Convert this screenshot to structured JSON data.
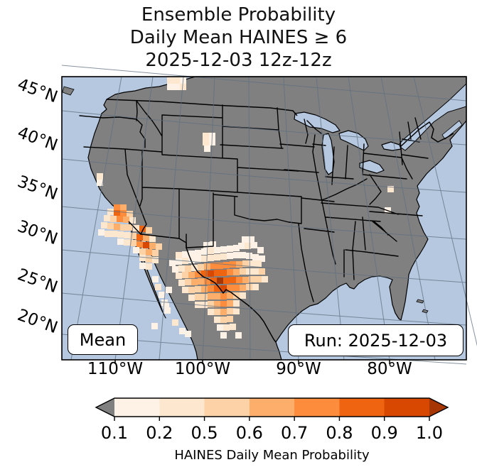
{
  "title": {
    "line1": "Ensemble Probability",
    "line2": "Daily Mean HAINES ≥ 6",
    "line3": "2025-12-03 12z-12z"
  },
  "map": {
    "mean_label": "Mean",
    "run_label": "Run: 2025-12-03",
    "lon_labels": [
      "110°W",
      "100°W",
      "90°W",
      "80°W"
    ],
    "lat_labels": [
      "45°N",
      "40°N",
      "35°N",
      "30°N",
      "25°N",
      "20°N"
    ],
    "colors": {
      "ocean": "#b5c8e0",
      "land": "#808080",
      "lake": "#b5c8e0",
      "boundary": "#000000",
      "gridline": "#5f6f7f"
    },
    "cell_size": 9,
    "palette": [
      "#fdf2e5",
      "#fee7cf",
      "#fdd2a6",
      "#fdae6b",
      "#fd8d3c",
      "#ee6410",
      "#d94801",
      "#a63603"
    ],
    "cells": [
      [
        235,
        109,
        2
      ],
      [
        244,
        109,
        2
      ],
      [
        253,
        109,
        1
      ],
      [
        235,
        118,
        1
      ],
      [
        244,
        118,
        1
      ],
      [
        253,
        118,
        2
      ],
      [
        285,
        187,
        2
      ],
      [
        294,
        187,
        1
      ],
      [
        285,
        196,
        2
      ],
      [
        294,
        196,
        1
      ],
      [
        287,
        205,
        1
      ],
      [
        136,
        244,
        2
      ],
      [
        136,
        253,
        1
      ],
      [
        545,
        262,
        2
      ],
      [
        541,
        292,
        1
      ],
      [
        160,
        288,
        5
      ],
      [
        169,
        288,
        4
      ],
      [
        151,
        294,
        2
      ],
      [
        160,
        296,
        6
      ],
      [
        169,
        296,
        5
      ],
      [
        178,
        297,
        3
      ],
      [
        146,
        303,
        2
      ],
      [
        155,
        304,
        3
      ],
      [
        164,
        304,
        5
      ],
      [
        173,
        305,
        4
      ],
      [
        182,
        306,
        2
      ],
      [
        142,
        313,
        2
      ],
      [
        151,
        314,
        3
      ],
      [
        160,
        315,
        4
      ],
      [
        169,
        316,
        3
      ],
      [
        178,
        316,
        3
      ],
      [
        187,
        317,
        2
      ],
      [
        196,
        318,
        6
      ],
      [
        205,
        320,
        3
      ],
      [
        138,
        323,
        1
      ],
      [
        147,
        325,
        2
      ],
      [
        156,
        325,
        2
      ],
      [
        165,
        326,
        2
      ],
      [
        174,
        327,
        2
      ],
      [
        183,
        328,
        3
      ],
      [
        192,
        330,
        6
      ],
      [
        201,
        331,
        4
      ],
      [
        210,
        332,
        2
      ],
      [
        165,
        336,
        1
      ],
      [
        174,
        337,
        2
      ],
      [
        183,
        338,
        3
      ],
      [
        192,
        340,
        5
      ],
      [
        201,
        341,
        7
      ],
      [
        210,
        342,
        4
      ],
      [
        219,
        343,
        3
      ],
      [
        187,
        348,
        1
      ],
      [
        196,
        350,
        3
      ],
      [
        205,
        351,
        4
      ],
      [
        214,
        352,
        3
      ],
      [
        196,
        359,
        2
      ],
      [
        205,
        361,
        3
      ],
      [
        214,
        362,
        2
      ],
      [
        196,
        370,
        1
      ],
      [
        205,
        371,
        2
      ],
      [
        214,
        389,
        1
      ],
      [
        218,
        400,
        2
      ],
      [
        223,
        411,
        1
      ],
      [
        227,
        422,
        1
      ],
      [
        231,
        433,
        1
      ],
      [
        213,
        455,
        1
      ],
      [
        252,
        462,
        1
      ],
      [
        340,
        333,
        1
      ],
      [
        349,
        333,
        1
      ],
      [
        286,
        341,
        1
      ],
      [
        295,
        340,
        1
      ],
      [
        335,
        342,
        1
      ],
      [
        344,
        342,
        2
      ],
      [
        247,
        355,
        2
      ],
      [
        256,
        354,
        1
      ],
      [
        265,
        353,
        1
      ],
      [
        274,
        352,
        1
      ],
      [
        283,
        350,
        1
      ],
      [
        292,
        349,
        2
      ],
      [
        301,
        348,
        1
      ],
      [
        310,
        347,
        1
      ],
      [
        319,
        346,
        1
      ],
      [
        328,
        345,
        1
      ],
      [
        353,
        341,
        1
      ],
      [
        362,
        348,
        1
      ],
      [
        238,
        366,
        1
      ],
      [
        247,
        364,
        1
      ],
      [
        256,
        363,
        2
      ],
      [
        265,
        362,
        1
      ],
      [
        274,
        361,
        1
      ],
      [
        283,
        360,
        2
      ],
      [
        292,
        359,
        2
      ],
      [
        301,
        358,
        2
      ],
      [
        310,
        357,
        2
      ],
      [
        319,
        356,
        1
      ],
      [
        328,
        355,
        1
      ],
      [
        337,
        355,
        1
      ],
      [
        346,
        356,
        1
      ],
      [
        355,
        358,
        1
      ],
      [
        364,
        360,
        1
      ],
      [
        242,
        375,
        1
      ],
      [
        251,
        374,
        2
      ],
      [
        260,
        374,
        3
      ],
      [
        269,
        373,
        2
      ],
      [
        278,
        372,
        3
      ],
      [
        287,
        371,
        4
      ],
      [
        296,
        370,
        5
      ],
      [
        305,
        370,
        5
      ],
      [
        314,
        369,
        5
      ],
      [
        323,
        368,
        5
      ],
      [
        332,
        368,
        4
      ],
      [
        341,
        367,
        3
      ],
      [
        350,
        367,
        2
      ],
      [
        359,
        367,
        2
      ],
      [
        247,
        384,
        2
      ],
      [
        256,
        383,
        3
      ],
      [
        265,
        383,
        4
      ],
      [
        274,
        382,
        5
      ],
      [
        283,
        381,
        6
      ],
      [
        292,
        381,
        7
      ],
      [
        301,
        380,
        6
      ],
      [
        310,
        380,
        6
      ],
      [
        319,
        379,
        5
      ],
      [
        328,
        379,
        4
      ],
      [
        337,
        378,
        3
      ],
      [
        346,
        378,
        2
      ],
      [
        355,
        378,
        2
      ],
      [
        364,
        378,
        3
      ],
      [
        251,
        394,
        2
      ],
      [
        260,
        393,
        3
      ],
      [
        269,
        393,
        4
      ],
      [
        278,
        392,
        4
      ],
      [
        287,
        392,
        5
      ],
      [
        296,
        391,
        6
      ],
      [
        305,
        391,
        8
      ],
      [
        314,
        391,
        6
      ],
      [
        323,
        390,
        6
      ],
      [
        332,
        390,
        5
      ],
      [
        341,
        390,
        4
      ],
      [
        350,
        389,
        3
      ],
      [
        359,
        389,
        3
      ],
      [
        368,
        389,
        2
      ],
      [
        256,
        404,
        2
      ],
      [
        265,
        404,
        3
      ],
      [
        274,
        403,
        3
      ],
      [
        283,
        403,
        4
      ],
      [
        292,
        402,
        5
      ],
      [
        301,
        402,
        6
      ],
      [
        310,
        402,
        7
      ],
      [
        319,
        401,
        5
      ],
      [
        328,
        401,
        5
      ],
      [
        337,
        401,
        4
      ],
      [
        346,
        400,
        3
      ],
      [
        355,
        400,
        2
      ],
      [
        265,
        415,
        2
      ],
      [
        274,
        414,
        3
      ],
      [
        283,
        414,
        3
      ],
      [
        292,
        413,
        4
      ],
      [
        301,
        413,
        4
      ],
      [
        310,
        413,
        5
      ],
      [
        319,
        412,
        4
      ],
      [
        328,
        412,
        3
      ],
      [
        337,
        412,
        2
      ],
      [
        233,
        404,
        1
      ],
      [
        229,
        426,
        1
      ],
      [
        274,
        425,
        2
      ],
      [
        283,
        425,
        2
      ],
      [
        292,
        424,
        3
      ],
      [
        301,
        424,
        4
      ],
      [
        310,
        424,
        5
      ],
      [
        319,
        423,
        4
      ],
      [
        328,
        423,
        2
      ],
      [
        292,
        435,
        2
      ],
      [
        301,
        435,
        3
      ],
      [
        310,
        435,
        4
      ],
      [
        319,
        434,
        3
      ],
      [
        328,
        434,
        2
      ],
      [
        301,
        446,
        2
      ],
      [
        310,
        446,
        3
      ],
      [
        319,
        445,
        3
      ],
      [
        242,
        450,
        2
      ],
      [
        305,
        457,
        1
      ],
      [
        314,
        457,
        2
      ],
      [
        323,
        456,
        2
      ],
      [
        260,
        466,
        1
      ],
      [
        310,
        468,
        1
      ],
      [
        331,
        468,
        1
      ]
    ]
  },
  "colorbar": {
    "label": "HAINES Daily Mean Probability",
    "tick_labels": [
      "0.1",
      "0.2",
      "0.5",
      "0.6",
      "0.7",
      "0.8",
      "0.9",
      "1.0"
    ],
    "segment_colors": [
      "#fdf2e5",
      "#fee7cf",
      "#fdd2a6",
      "#fdae6b",
      "#fd8d3c",
      "#ee6410",
      "#d94801"
    ],
    "under_color": "#808080",
    "over_color": "#a63603"
  }
}
